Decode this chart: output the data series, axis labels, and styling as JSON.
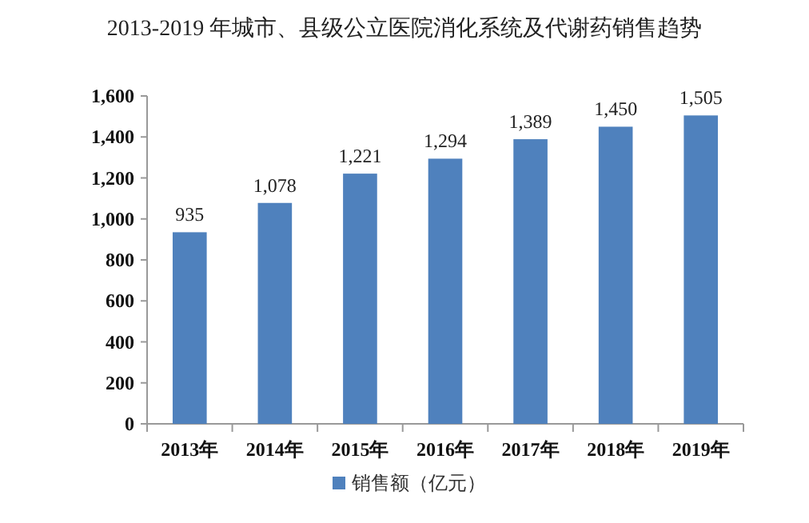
{
  "chart_data": {
    "type": "bar",
    "title": "2013-2019 年城市、县级公立医院消化系统及代谢药销售趋势",
    "categories": [
      "2013年",
      "2014年",
      "2015年",
      "2016年",
      "2017年",
      "2018年",
      "2019年"
    ],
    "series": [
      {
        "name": "销售额（亿元）",
        "color": "#4f81bd",
        "values": [
          935,
          1078,
          1221,
          1294,
          1389,
          1450,
          1505
        ],
        "value_labels": [
          "935",
          "1,078",
          "1,221",
          "1,294",
          "1,389",
          "1,450",
          "1,505"
        ]
      }
    ],
    "ylim": [
      0,
      1600
    ],
    "yticks": [
      0,
      200,
      400,
      600,
      800,
      {
        "value": 1000,
        "label": "1,000"
      },
      {
        "value": 1200,
        "label": "1,200"
      },
      {
        "value": 1400,
        "label": "1,400"
      },
      {
        "value": 1600,
        "label": "1,600"
      }
    ],
    "legend": "bottom"
  }
}
